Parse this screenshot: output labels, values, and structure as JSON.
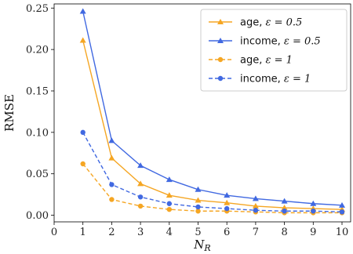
{
  "chart_data": {
    "type": "line",
    "title": "",
    "xlabel": "N_R",
    "ylabel": "RMSE",
    "xlim": [
      0,
      10.3
    ],
    "ylim": [
      -0.008,
      0.255
    ],
    "x_ticks": [
      0,
      1,
      2,
      3,
      4,
      5,
      6,
      7,
      8,
      9,
      10
    ],
    "y_ticks": [
      0.0,
      0.05,
      0.1,
      0.15,
      0.2,
      0.25
    ],
    "y_tick_labels": [
      "0.00",
      "0.05",
      "0.10",
      "0.15",
      "0.20",
      "0.25"
    ],
    "grid": false,
    "legend_position": "top-right",
    "x": [
      1,
      2,
      3,
      4,
      5,
      6,
      7,
      8,
      9,
      10
    ],
    "series": [
      {
        "name": "age, ε = 0.5",
        "color": "#f5a623",
        "line_style": "solid",
        "marker": "triangle",
        "values": [
          0.211,
          0.069,
          0.038,
          0.024,
          0.018,
          0.015,
          0.011,
          0.009,
          0.008,
          0.007
        ]
      },
      {
        "name": "income, ε = 0.5",
        "color": "#4169e1",
        "line_style": "solid",
        "marker": "triangle",
        "values": [
          0.246,
          0.09,
          0.06,
          0.043,
          0.031,
          0.024,
          0.02,
          0.017,
          0.014,
          0.012
        ]
      },
      {
        "name": "age, ε = 1",
        "color": "#f5a623",
        "line_style": "dashed",
        "marker": "circle",
        "values": [
          0.062,
          0.019,
          0.011,
          0.007,
          0.005,
          0.005,
          0.004,
          0.003,
          0.003,
          0.003
        ]
      },
      {
        "name": "income, ε = 1",
        "color": "#4169e1",
        "line_style": "dashed",
        "marker": "circle",
        "values": [
          0.1,
          0.037,
          0.022,
          0.014,
          0.01,
          0.008,
          0.006,
          0.005,
          0.005,
          0.004
        ]
      }
    ]
  }
}
